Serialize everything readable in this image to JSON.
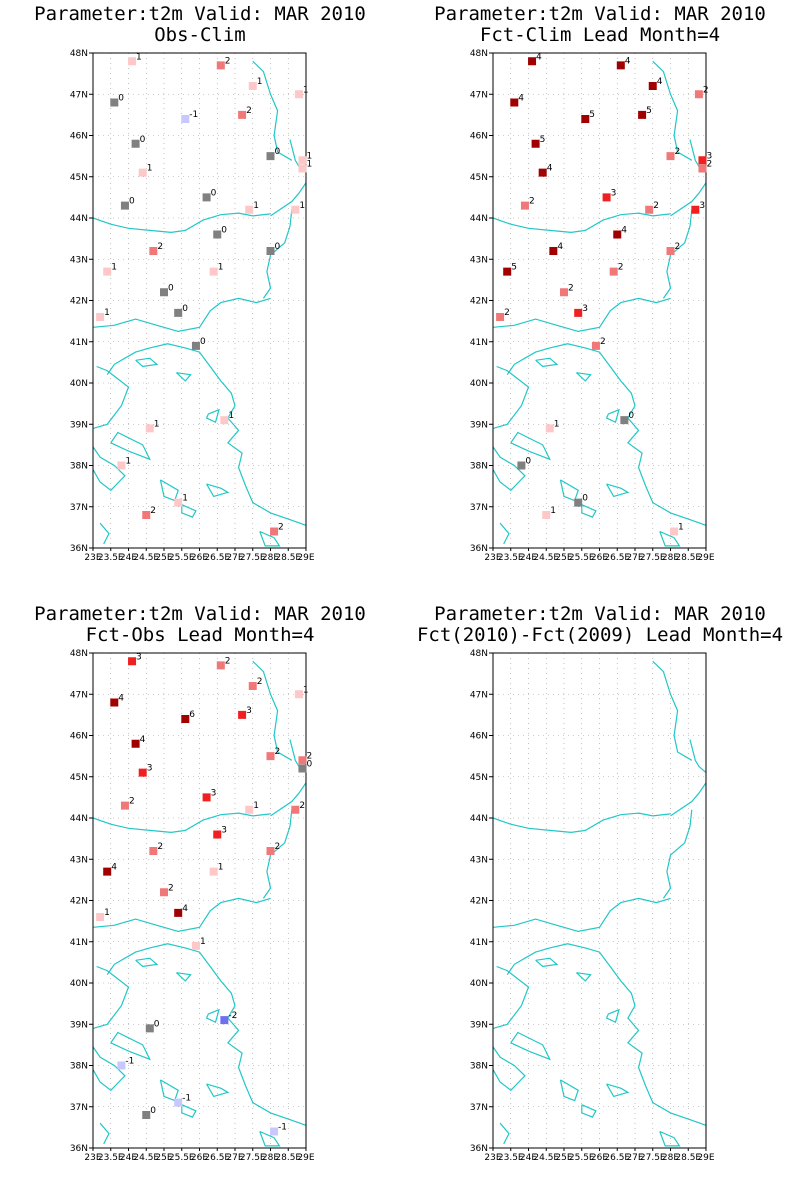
{
  "colors": {
    "coast": "#22c7c7",
    "grid": "#9a9a9a",
    "value_colors": {
      "-2": "#6f6ff0",
      "-1": "#c8c8ff",
      "0": "#808080",
      "1": "#ffc8c8",
      "2": "#f07878",
      "3": "#f02020",
      "4": "#a00000",
      "5": "#a00000",
      "6": "#a00000"
    }
  },
  "lat_ticks": [
    "36N",
    "37N",
    "38N",
    "39N",
    "40N",
    "41N",
    "42N",
    "43N",
    "44N",
    "45N",
    "46N",
    "47N",
    "48N"
  ],
  "lon_ticks": [
    "23E",
    "23.5E",
    "24E",
    "24.5E",
    "25E",
    "25.5E",
    "26E",
    "26.5E",
    "27E",
    "27.5E",
    "28E",
    "28.5E",
    "29E"
  ],
  "chart_data": [
    {
      "type": "map-stations",
      "title": "Parameter:t2m Valid: MAR 2010",
      "subtitle": "Obs-Clim",
      "xlim": [
        23,
        29
      ],
      "ylim": [
        36,
        48
      ],
      "stations": [
        {
          "lon": 24.1,
          "lat": 47.8,
          "value": 1
        },
        {
          "lon": 26.6,
          "lat": 47.7,
          "value": 2
        },
        {
          "lon": 27.5,
          "lat": 47.2,
          "value": 1
        },
        {
          "lon": 28.8,
          "lat": 47.0,
          "value": 1
        },
        {
          "lon": 23.6,
          "lat": 46.8,
          "value": 0
        },
        {
          "lon": 27.2,
          "lat": 46.5,
          "value": 2
        },
        {
          "lon": 25.6,
          "lat": 46.4,
          "value": -1
        },
        {
          "lon": 24.2,
          "lat": 45.8,
          "value": 0
        },
        {
          "lon": 28.0,
          "lat": 45.5,
          "value": 0
        },
        {
          "lon": 28.9,
          "lat": 45.4,
          "value": 1
        },
        {
          "lon": 28.9,
          "lat": 45.2,
          "value": 1
        },
        {
          "lon": 24.4,
          "lat": 45.1,
          "value": 1
        },
        {
          "lon": 26.2,
          "lat": 44.5,
          "value": 0
        },
        {
          "lon": 23.9,
          "lat": 44.3,
          "value": 0
        },
        {
          "lon": 27.4,
          "lat": 44.2,
          "value": 1
        },
        {
          "lon": 28.7,
          "lat": 44.2,
          "value": 1
        },
        {
          "lon": 26.5,
          "lat": 43.6,
          "value": 0
        },
        {
          "lon": 28.0,
          "lat": 43.2,
          "value": 0
        },
        {
          "lon": 24.7,
          "lat": 43.2,
          "value": 2
        },
        {
          "lon": 23.4,
          "lat": 42.7,
          "value": 1
        },
        {
          "lon": 26.4,
          "lat": 42.7,
          "value": 1
        },
        {
          "lon": 25.0,
          "lat": 42.2,
          "value": 0
        },
        {
          "lon": 25.4,
          "lat": 41.7,
          "value": 0
        },
        {
          "lon": 23.2,
          "lat": 41.6,
          "value": 1
        },
        {
          "lon": 25.9,
          "lat": 40.9,
          "value": 0
        },
        {
          "lon": 24.6,
          "lat": 38.9,
          "value": 1
        },
        {
          "lon": 26.7,
          "lat": 39.1,
          "value": 1
        },
        {
          "lon": 23.8,
          "lat": 38.0,
          "value": 1
        },
        {
          "lon": 25.4,
          "lat": 37.1,
          "value": 1
        },
        {
          "lon": 24.5,
          "lat": 36.8,
          "value": 2
        },
        {
          "lon": 28.1,
          "lat": 36.4,
          "value": 2
        }
      ]
    },
    {
      "type": "map-stations",
      "title": "Parameter:t2m Valid: MAR 2010",
      "subtitle": "Fct-Clim Lead Month=4",
      "xlim": [
        23,
        29
      ],
      "ylim": [
        36,
        48
      ],
      "stations": [
        {
          "lon": 24.1,
          "lat": 47.8,
          "value": 4
        },
        {
          "lon": 26.6,
          "lat": 47.7,
          "value": 4
        },
        {
          "lon": 27.5,
          "lat": 47.2,
          "value": 4
        },
        {
          "lon": 28.8,
          "lat": 47.0,
          "value": 2
        },
        {
          "lon": 23.6,
          "lat": 46.8,
          "value": 4
        },
        {
          "lon": 27.2,
          "lat": 46.5,
          "value": 5
        },
        {
          "lon": 25.6,
          "lat": 46.4,
          "value": 5
        },
        {
          "lon": 24.2,
          "lat": 45.8,
          "value": 5
        },
        {
          "lon": 28.0,
          "lat": 45.5,
          "value": 2
        },
        {
          "lon": 28.9,
          "lat": 45.4,
          "value": 3
        },
        {
          "lon": 28.9,
          "lat": 45.2,
          "value": 2
        },
        {
          "lon": 24.4,
          "lat": 45.1,
          "value": 4
        },
        {
          "lon": 26.2,
          "lat": 44.5,
          "value": 3
        },
        {
          "lon": 23.9,
          "lat": 44.3,
          "value": 2
        },
        {
          "lon": 27.4,
          "lat": 44.2,
          "value": 2
        },
        {
          "lon": 28.7,
          "lat": 44.2,
          "value": 3
        },
        {
          "lon": 26.5,
          "lat": 43.6,
          "value": 4
        },
        {
          "lon": 28.0,
          "lat": 43.2,
          "value": 2
        },
        {
          "lon": 24.7,
          "lat": 43.2,
          "value": 4
        },
        {
          "lon": 23.4,
          "lat": 42.7,
          "value": 5
        },
        {
          "lon": 26.4,
          "lat": 42.7,
          "value": 2
        },
        {
          "lon": 25.0,
          "lat": 42.2,
          "value": 2
        },
        {
          "lon": 25.4,
          "lat": 41.7,
          "value": 3
        },
        {
          "lon": 23.2,
          "lat": 41.6,
          "value": 2
        },
        {
          "lon": 25.9,
          "lat": 40.9,
          "value": 2
        },
        {
          "lon": 24.6,
          "lat": 38.9,
          "value": 1
        },
        {
          "lon": 26.7,
          "lat": 39.1,
          "value": 0
        },
        {
          "lon": 23.8,
          "lat": 38.0,
          "value": 0
        },
        {
          "lon": 25.4,
          "lat": 37.1,
          "value": 0
        },
        {
          "lon": 24.5,
          "lat": 36.8,
          "value": 1
        },
        {
          "lon": 28.1,
          "lat": 36.4,
          "value": 1
        }
      ]
    },
    {
      "type": "map-stations",
      "title": "Parameter:t2m Valid: MAR 2010",
      "subtitle": "Fct-Obs Lead Month=4",
      "xlim": [
        23,
        29
      ],
      "ylim": [
        36,
        48
      ],
      "stations": [
        {
          "lon": 24.1,
          "lat": 47.8,
          "value": 3
        },
        {
          "lon": 26.6,
          "lat": 47.7,
          "value": 2
        },
        {
          "lon": 27.5,
          "lat": 47.2,
          "value": 2
        },
        {
          "lon": 28.8,
          "lat": 47.0,
          "value": 1
        },
        {
          "lon": 23.6,
          "lat": 46.8,
          "value": 4
        },
        {
          "lon": 27.2,
          "lat": 46.5,
          "value": 3
        },
        {
          "lon": 25.6,
          "lat": 46.4,
          "value": 6
        },
        {
          "lon": 24.2,
          "lat": 45.8,
          "value": 4
        },
        {
          "lon": 28.0,
          "lat": 45.5,
          "value": 2
        },
        {
          "lon": 28.9,
          "lat": 45.4,
          "value": 2
        },
        {
          "lon": 28.9,
          "lat": 45.2,
          "value": 0
        },
        {
          "lon": 24.4,
          "lat": 45.1,
          "value": 3
        },
        {
          "lon": 26.2,
          "lat": 44.5,
          "value": 3
        },
        {
          "lon": 23.9,
          "lat": 44.3,
          "value": 2
        },
        {
          "lon": 27.4,
          "lat": 44.2,
          "value": 1
        },
        {
          "lon": 28.7,
          "lat": 44.2,
          "value": 2
        },
        {
          "lon": 26.5,
          "lat": 43.6,
          "value": 3
        },
        {
          "lon": 28.0,
          "lat": 43.2,
          "value": 2
        },
        {
          "lon": 24.7,
          "lat": 43.2,
          "value": 2
        },
        {
          "lon": 23.4,
          "lat": 42.7,
          "value": 4
        },
        {
          "lon": 26.4,
          "lat": 42.7,
          "value": 1
        },
        {
          "lon": 25.0,
          "lat": 42.2,
          "value": 2
        },
        {
          "lon": 25.4,
          "lat": 41.7,
          "value": 4
        },
        {
          "lon": 23.2,
          "lat": 41.6,
          "value": 1
        },
        {
          "lon": 25.9,
          "lat": 40.9,
          "value": 1
        },
        {
          "lon": 24.6,
          "lat": 38.9,
          "value": 0
        },
        {
          "lon": 26.7,
          "lat": 39.1,
          "value": -2
        },
        {
          "lon": 23.8,
          "lat": 38.0,
          "value": -1
        },
        {
          "lon": 25.4,
          "lat": 37.1,
          "value": -1
        },
        {
          "lon": 24.5,
          "lat": 36.8,
          "value": 0
        },
        {
          "lon": 28.1,
          "lat": 36.4,
          "value": -1
        }
      ]
    },
    {
      "type": "map-stations",
      "title": "Parameter:t2m Valid: MAR 2010",
      "subtitle": "Fct(2010)-Fct(2009) Lead Month=4",
      "xlim": [
        23,
        29
      ],
      "ylim": [
        36,
        48
      ],
      "stations": []
    }
  ]
}
